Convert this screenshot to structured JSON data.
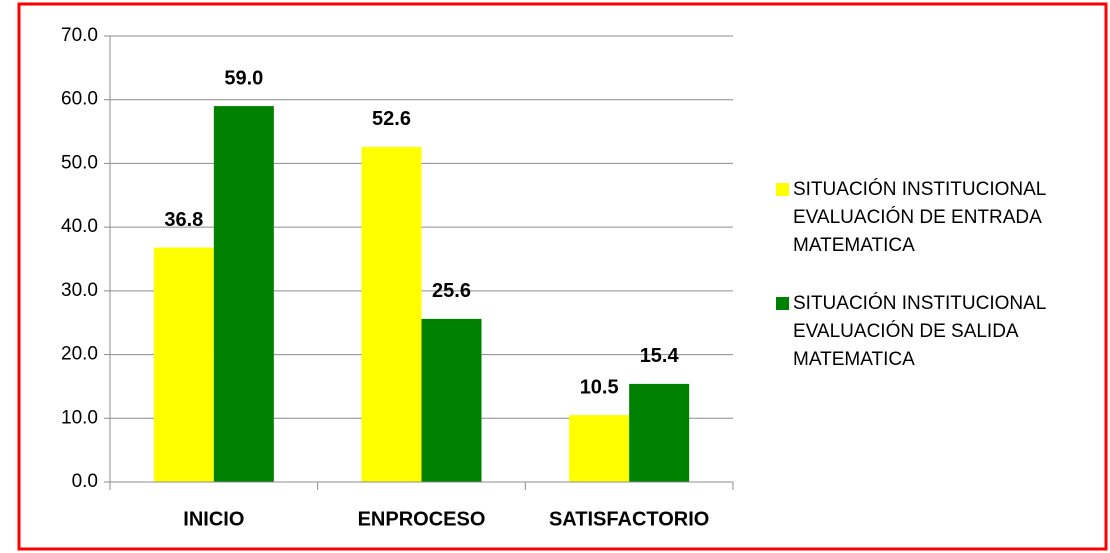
{
  "chart_data": {
    "type": "bar",
    "categories": [
      "INICIO",
      "ENPROCESO",
      "SATISFACTORIO"
    ],
    "series": [
      {
        "name": "SITUACIÓN  INSTITUCIONAL EVALUACIÓN DE ENTRADA MATEMATICA",
        "color": "#ffff00",
        "values": [
          36.8,
          52.6,
          10.5
        ],
        "value_labels": [
          "36.8",
          "52.6",
          "10.5"
        ]
      },
      {
        "name": "SITUACIÓN INSTITUCIONAL EVALUACIÓN DE SALIDA MATEMATICA",
        "color": "#008000",
        "values": [
          59.0,
          25.6,
          15.4
        ],
        "value_labels": [
          "59.0",
          "25.6",
          "15.4"
        ]
      }
    ],
    "ylim": [
      0,
      70
    ],
    "yticks": [
      {
        "value": 0,
        "label": "0.0"
      },
      {
        "value": 10,
        "label": "10.0"
      },
      {
        "value": 20,
        "label": "20.0"
      },
      {
        "value": 30,
        "label": "30.0"
      },
      {
        "value": 40,
        "label": "40.0"
      },
      {
        "value": 50,
        "label": "50.0"
      },
      {
        "value": 60,
        "label": "60.0"
      },
      {
        "value": 70,
        "label": "70.0"
      }
    ],
    "grid": true,
    "legend": "right"
  }
}
